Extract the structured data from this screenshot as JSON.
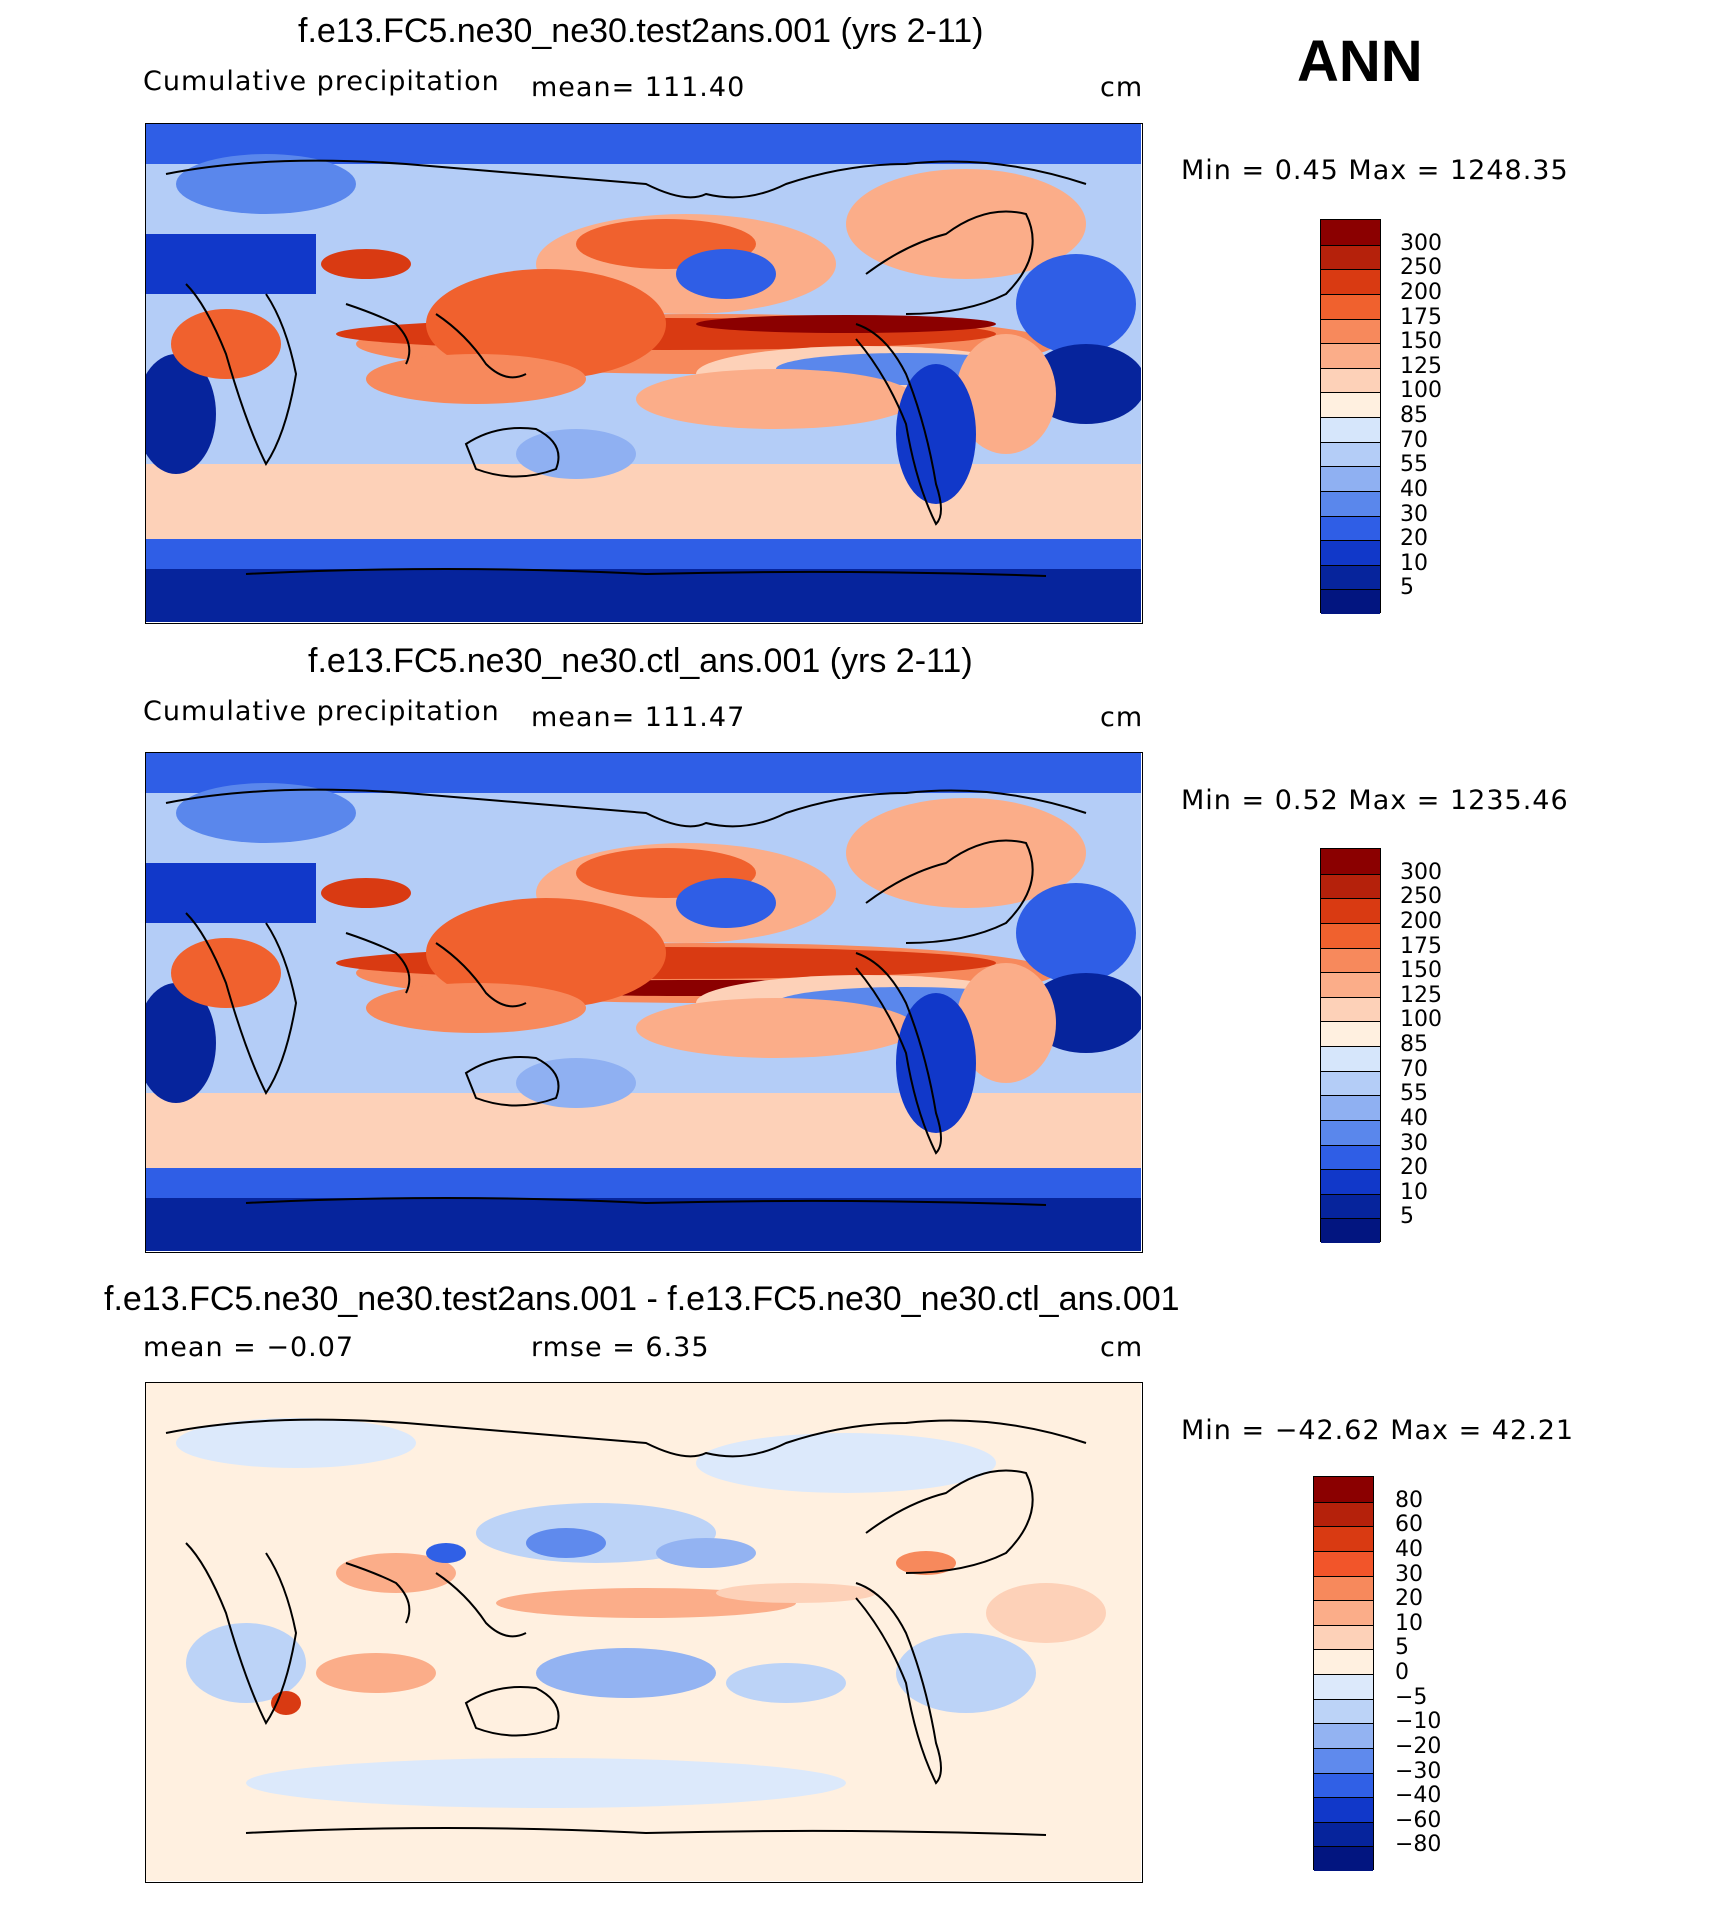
{
  "season": "ANN",
  "panels": [
    {
      "title": "f.e13.FC5.ne30_ne30.test2ans.001 (yrs 2-11)",
      "var_label": "Cumulative precipitation",
      "stat1": "mean= 111.40",
      "stat2": "",
      "units": "cm",
      "minmax": "Min = 0.45 Max = 1248.35",
      "colorbar": {
        "levels": [
          "300",
          "250",
          "200",
          "175",
          "150",
          "125",
          "100",
          "85",
          "70",
          "55",
          "40",
          "30",
          "20",
          "10",
          "5"
        ],
        "colors": [
          "#8b0000",
          "#b5210b",
          "#d93a12",
          "#f0612e",
          "#f7895c",
          "#fbad89",
          "#fdd1b8",
          "#fff0e0",
          "#d6e6fb",
          "#b4cdf7",
          "#8fb0f2",
          "#5a87ec",
          "#2f5ee6",
          "#1138c9",
          "#06249c",
          "#021580"
        ]
      }
    },
    {
      "title": "f.e13.FC5.ne30_ne30.ctl_ans.001 (yrs 2-11)",
      "var_label": "Cumulative precipitation",
      "stat1": "mean= 111.47",
      "stat2": "",
      "units": "cm",
      "minmax": "Min = 0.52 Max = 1235.46",
      "colorbar": {
        "levels": [
          "300",
          "250",
          "200",
          "175",
          "150",
          "125",
          "100",
          "85",
          "70",
          "55",
          "40",
          "30",
          "20",
          "10",
          "5"
        ],
        "colors": [
          "#8b0000",
          "#b5210b",
          "#d93a12",
          "#f0612e",
          "#f7895c",
          "#fbad89",
          "#fdd1b8",
          "#fff0e0",
          "#d6e6fb",
          "#b4cdf7",
          "#8fb0f2",
          "#5a87ec",
          "#2f5ee6",
          "#1138c9",
          "#06249c",
          "#021580"
        ]
      }
    },
    {
      "title": "f.e13.FC5.ne30_ne30.test2ans.001 - f.e13.FC5.ne30_ne30.ctl_ans.001",
      "var_label": "mean = −0.07",
      "stat1": "rmse = 6.35",
      "stat2": "",
      "units": "cm",
      "minmax": "Min = −42.62 Max = 42.21",
      "colorbar": {
        "levels": [
          "80",
          "60",
          "40",
          "30",
          "20",
          "10",
          "5",
          "0",
          "−5",
          "−10",
          "−20",
          "−30",
          "−40",
          "−60",
          "−80"
        ],
        "colors": [
          "#8b0000",
          "#b5210b",
          "#d93a12",
          "#f2552a",
          "#f7895c",
          "#fbad89",
          "#fdd1b8",
          "#fff0e0",
          "#dce9fb",
          "#bcd3f7",
          "#93b3f2",
          "#5f8aed",
          "#3060e6",
          "#1138c9",
          "#06249c",
          "#021580"
        ]
      }
    }
  ]
}
